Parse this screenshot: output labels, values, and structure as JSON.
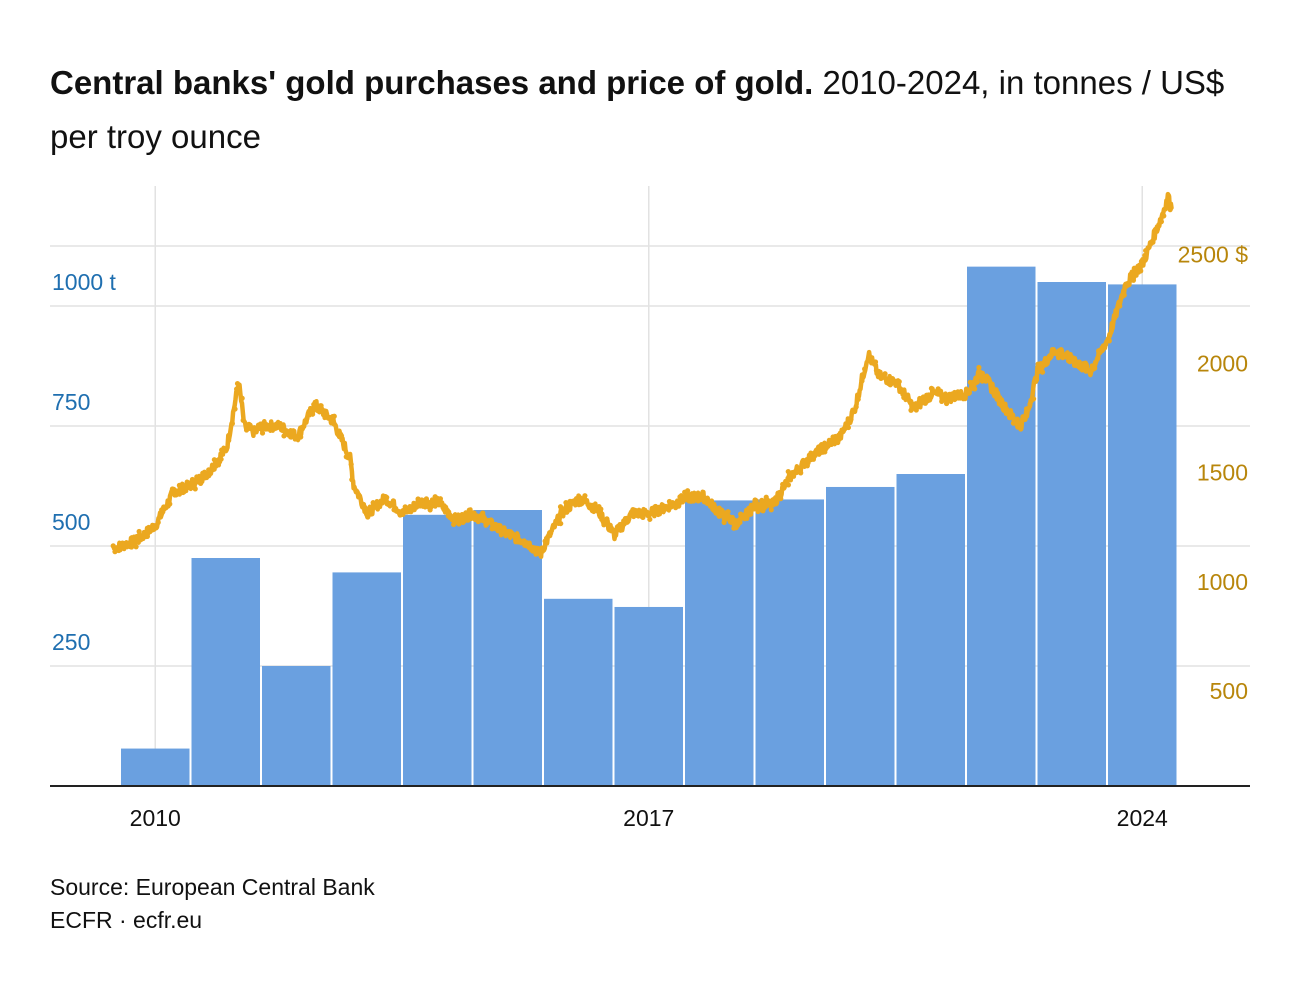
{
  "title": {
    "bold": "Central banks' gold purchases and price of gold.",
    "rest": " 2010-2024, in tonnes / US$ per troy ounce"
  },
  "footer": {
    "source": "Source: European Central Bank",
    "credit": "ECFR · ecfr.eu"
  },
  "colors": {
    "bars": "#6aa0e0",
    "price": "#eba820",
    "left_axis": "#1f6fb0",
    "right_axis": "#b8860b",
    "grid": "#e2e2e2"
  },
  "chart_data": {
    "type": "bar+line",
    "title": "Central banks' gold purchases and price of gold.",
    "subtitle": "2010-2024, in tonnes / US$ per troy ounce",
    "x_tick_labels": [
      "2010",
      "2017",
      "2024"
    ],
    "left_axis": {
      "ylim": [
        0,
        1250
      ],
      "ticks": [
        250,
        500,
        750,
        1000
      ],
      "tick_labels": [
        "250",
        "500",
        "750",
        "1000 t"
      ]
    },
    "right_axis": {
      "ylim": [
        0,
        2750
      ],
      "ticks": [
        500,
        1000,
        1500,
        2000,
        2500
      ],
      "tick_labels": [
        "500",
        "1000",
        "1500",
        "2000",
        "2500 $"
      ]
    },
    "grid": true,
    "bars": {
      "categories": [
        2010,
        2011,
        2012,
        2013,
        2014,
        2015,
        2016,
        2017,
        2018,
        2019,
        2020,
        2021,
        2022,
        2023,
        2024
      ],
      "values": [
        78,
        475,
        250,
        445,
        565,
        575,
        390,
        373,
        595,
        597,
        623,
        650,
        1082,
        1050,
        1045
      ]
    },
    "price_series": {
      "x": [
        2009.9,
        2010.0,
        2010.25,
        2010.5,
        2010.75,
        2011.0,
        2011.25,
        2011.5,
        2011.67,
        2011.75,
        2011.9,
        2012.0,
        2012.25,
        2012.5,
        2012.75,
        2012.9,
        2013.0,
        2013.25,
        2013.3,
        2013.5,
        2013.75,
        2014.0,
        2014.25,
        2014.5,
        2014.75,
        2015.0,
        2015.25,
        2015.5,
        2015.75,
        2015.95,
        2016.0,
        2016.25,
        2016.5,
        2016.75,
        2017.0,
        2017.25,
        2017.5,
        2017.75,
        2018.0,
        2018.25,
        2018.5,
        2018.75,
        2019.0,
        2019.25,
        2019.5,
        2019.75,
        2020.0,
        2020.2,
        2020.4,
        2020.6,
        2020.75,
        2021.0,
        2021.25,
        2021.5,
        2021.75,
        2022.0,
        2022.2,
        2022.5,
        2022.75,
        2022.85,
        2023.0,
        2023.25,
        2023.5,
        2023.75,
        2024.0,
        2024.25,
        2024.5,
        2024.75,
        2024.85,
        2024.9
      ],
      "values": [
        1090,
        1100,
        1130,
        1200,
        1350,
        1380,
        1440,
        1550,
        1850,
        1650,
        1620,
        1650,
        1650,
        1600,
        1750,
        1700,
        1680,
        1500,
        1380,
        1250,
        1320,
        1250,
        1300,
        1300,
        1220,
        1250,
        1200,
        1150,
        1120,
        1060,
        1100,
        1250,
        1320,
        1270,
        1150,
        1250,
        1250,
        1280,
        1320,
        1330,
        1250,
        1200,
        1290,
        1290,
        1420,
        1500,
        1560,
        1600,
        1720,
        1980,
        1880,
        1850,
        1730,
        1800,
        1780,
        1800,
        1900,
        1750,
        1650,
        1700,
        1900,
        2000,
        1950,
        1900,
        2050,
        2300,
        2400,
        2600,
        2700,
        2650
      ]
    }
  }
}
